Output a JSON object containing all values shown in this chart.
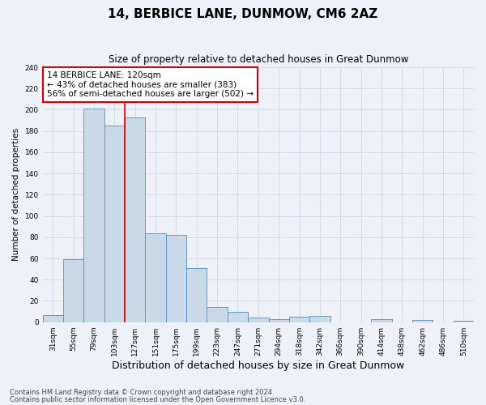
{
  "title": "14, BERBICE LANE, DUNMOW, CM6 2AZ",
  "subtitle": "Size of property relative to detached houses in Great Dunmow",
  "xlabel": "Distribution of detached houses by size in Great Dunmow",
  "ylabel": "Number of detached properties",
  "bin_labels": [
    "31sqm",
    "55sqm",
    "79sqm",
    "103sqm",
    "127sqm",
    "151sqm",
    "175sqm",
    "199sqm",
    "223sqm",
    "247sqm",
    "271sqm",
    "294sqm",
    "318sqm",
    "342sqm",
    "366sqm",
    "390sqm",
    "414sqm",
    "438sqm",
    "462sqm",
    "486sqm",
    "510sqm"
  ],
  "bar_values": [
    7,
    59,
    201,
    185,
    193,
    84,
    82,
    51,
    14,
    10,
    4,
    3,
    5,
    6,
    0,
    0,
    3,
    0,
    2,
    0,
    1
  ],
  "bar_color": "#c9d9e8",
  "bar_edge_color": "#5b8db8",
  "grid_color": "#d0d8e8",
  "background_color": "#eef2f8",
  "vline_x_index": 4,
  "vline_color": "#cc0000",
  "annotation_box_text": "14 BERBICE LANE: 120sqm\n← 43% of detached houses are smaller (383)\n56% of semi-detached houses are larger (502) →",
  "annotation_box_color": "#ffffff",
  "annotation_box_edge_color": "#cc0000",
  "ylim": [
    0,
    240
  ],
  "yticks": [
    0,
    20,
    40,
    60,
    80,
    100,
    120,
    140,
    160,
    180,
    200,
    220,
    240
  ],
  "footnote_line1": "Contains HM Land Registry data © Crown copyright and database right 2024.",
  "footnote_line2": "Contains public sector information licensed under the Open Government Licence v3.0.",
  "title_fontsize": 11,
  "subtitle_fontsize": 8.5,
  "xlabel_fontsize": 9,
  "ylabel_fontsize": 7.5,
  "tick_fontsize": 6.5,
  "annotation_fontsize": 7.5,
  "footnote_fontsize": 6.0
}
